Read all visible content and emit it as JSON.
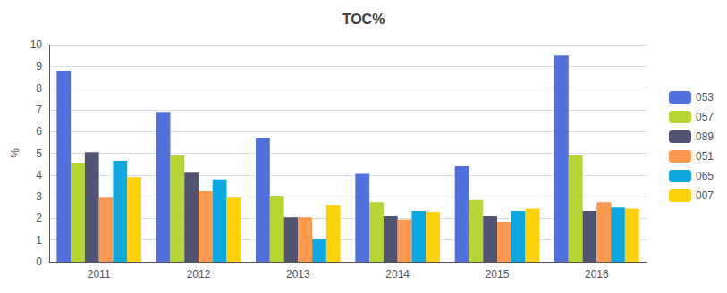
{
  "chart_data": {
    "type": "bar",
    "title": "TOC%",
    "ylabel": "%",
    "categories": [
      "2011",
      "2012",
      "2013",
      "2014",
      "2015",
      "2016"
    ],
    "series": [
      {
        "name": "053",
        "values": [
          8.8,
          6.9,
          5.7,
          4.05,
          4.4,
          9.5
        ]
      },
      {
        "name": "057",
        "values": [
          4.55,
          4.9,
          3.05,
          2.75,
          2.85,
          4.9
        ]
      },
      {
        "name": "089",
        "values": [
          5.05,
          4.1,
          2.05,
          2.1,
          2.1,
          2.35
        ]
      },
      {
        "name": "051",
        "values": [
          2.95,
          3.25,
          2.05,
          1.95,
          1.85,
          2.75
        ]
      },
      {
        "name": "065",
        "values": [
          4.65,
          3.8,
          1.05,
          2.35,
          2.35,
          2.5
        ]
      },
      {
        "name": "007",
        "values": [
          3.9,
          2.95,
          2.6,
          2.3,
          2.45,
          2.45
        ]
      }
    ],
    "ylim": [
      0,
      10
    ],
    "yticks": [
      0,
      1,
      2,
      3,
      4,
      5,
      6,
      7,
      8,
      9,
      10
    ],
    "grid": true,
    "legend": "right"
  }
}
